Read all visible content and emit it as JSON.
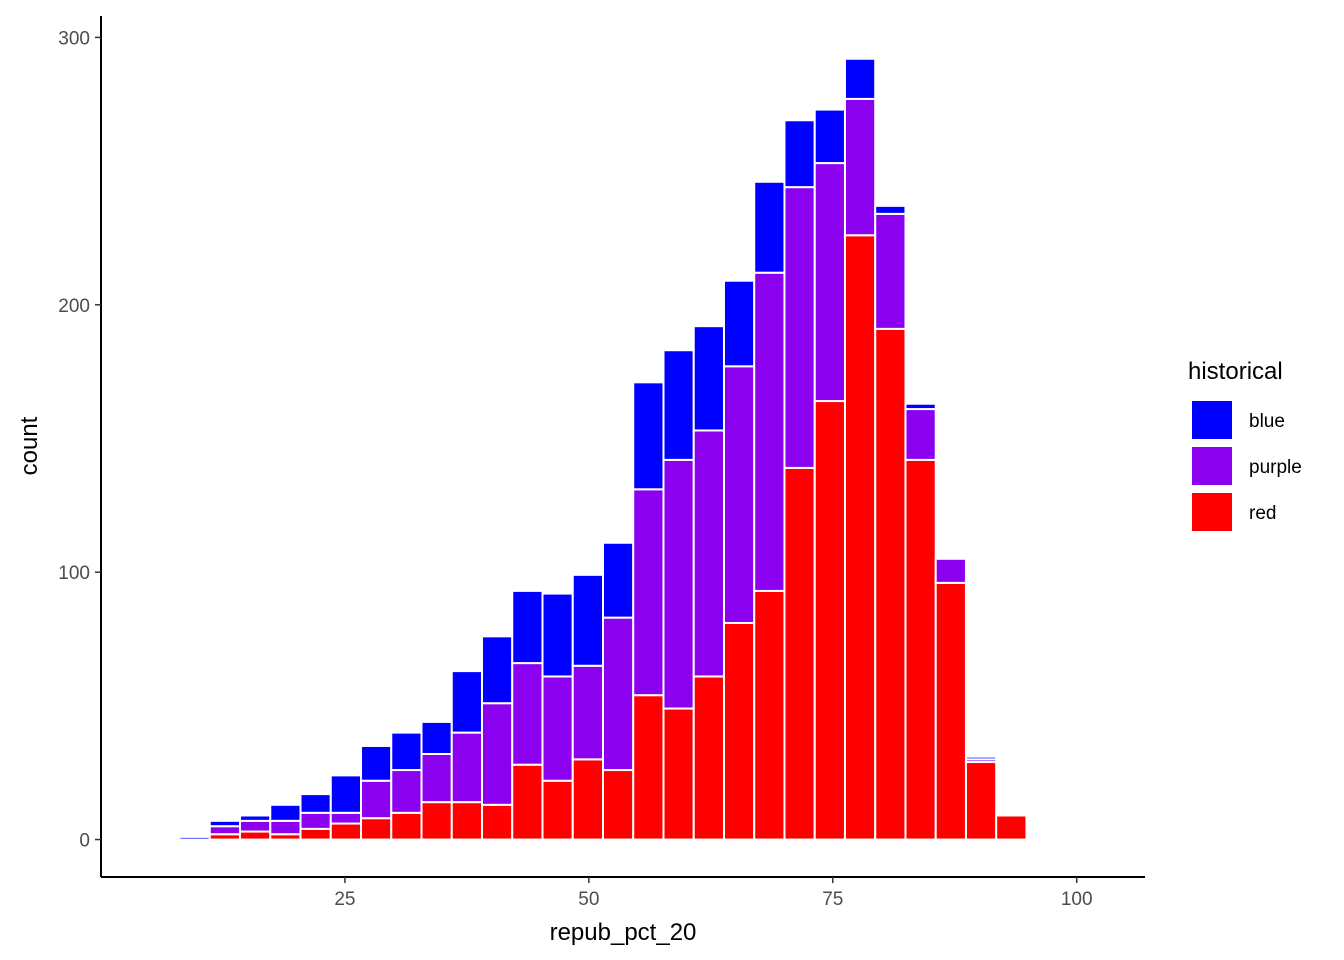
{
  "chart_data": {
    "type": "bar",
    "subtype": "stacked-histogram",
    "title": "",
    "xlabel": "repub_pct_20",
    "ylabel": "count",
    "xlim": [
      0,
      107
    ],
    "ylim": [
      -14,
      308
    ],
    "x_ticks": [
      25,
      50,
      75,
      100
    ],
    "y_ticks": [
      0,
      100,
      200,
      300
    ],
    "grid": false,
    "bin_width": 3.1,
    "bin_centers": [
      9.6,
      12.7,
      15.8,
      18.9,
      22.0,
      25.1,
      28.2,
      31.3,
      34.4,
      37.5,
      40.6,
      43.7,
      46.8,
      49.9,
      53.0,
      56.1,
      59.2,
      62.3,
      65.4,
      68.5,
      71.6,
      74.7,
      77.8,
      80.9,
      84.0,
      87.1,
      90.2,
      93.3
    ],
    "stack_order": [
      "red",
      "purple",
      "blue"
    ],
    "series": [
      {
        "name": "blue",
        "color": "#0000FF",
        "values": [
          1,
          2,
          2,
          6,
          7,
          14,
          13,
          14,
          12,
          23,
          25,
          27,
          31,
          34,
          28,
          40,
          41,
          39,
          32,
          34,
          25,
          20,
          15,
          3,
          2,
          0,
          1,
          0
        ]
      },
      {
        "name": "purple",
        "color": "#8B00EE",
        "values": [
          0,
          3,
          4,
          5,
          6,
          4,
          14,
          16,
          18,
          26,
          38,
          38,
          39,
          35,
          57,
          77,
          93,
          92,
          96,
          119,
          105,
          89,
          51,
          43,
          19,
          9,
          1,
          0
        ]
      },
      {
        "name": "red",
        "color": "#FF0000",
        "values": [
          0,
          2,
          3,
          2,
          4,
          6,
          8,
          10,
          14,
          14,
          13,
          28,
          22,
          30,
          26,
          54,
          49,
          61,
          81,
          93,
          139,
          164,
          226,
          191,
          142,
          96,
          29,
          9
        ]
      }
    ],
    "legend": {
      "title": "historical",
      "position": "right",
      "entries": [
        {
          "label": "blue",
          "color": "#0000FF"
        },
        {
          "label": "purple",
          "color": "#8B00EE"
        },
        {
          "label": "red",
          "color": "#FF0000"
        }
      ]
    }
  }
}
